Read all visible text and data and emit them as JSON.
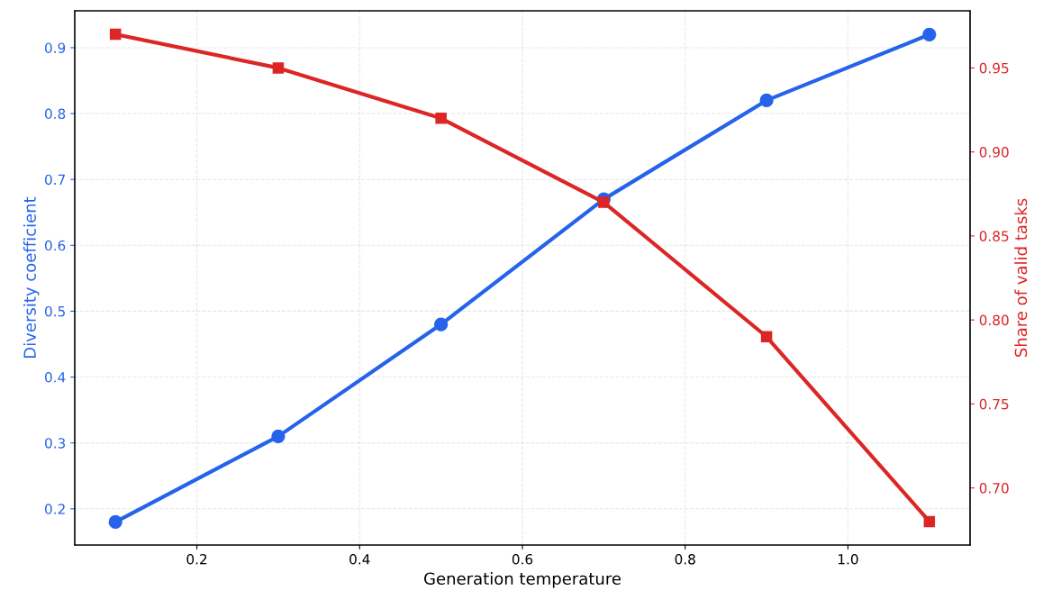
{
  "chart_data": {
    "type": "line",
    "xlabel": "Generation temperature",
    "ylabel": "Diversity coefficient",
    "y2label": "Share of valid tasks",
    "x": [
      0.1,
      0.3,
      0.5,
      0.7,
      0.9,
      1.1
    ],
    "series": [
      {
        "color": "#2563eb",
        "values": [
          0.18,
          0.31,
          0.48,
          0.67,
          0.82,
          0.92
        ],
        "marker": "circle"
      },
      {
        "color": "#dc2626",
        "values": [
          0.97,
          0.95,
          0.92,
          0.87,
          0.79,
          0.68
        ],
        "marker": "square",
        "axis": "y2"
      }
    ],
    "xlim": [
      0.05,
      1.15
    ],
    "xticks": [
      0.2,
      0.4,
      0.6,
      0.8,
      {
        "value": 1,
        "label": "1.0"
      }
    ],
    "ylim": [
      0.145,
      0.956
    ],
    "yticks": [
      0.2,
      0.3,
      0.4,
      0.5,
      0.6,
      0.7,
      0.8,
      0.9
    ],
    "y2lim": [
      0.666,
      0.984
    ],
    "y2ticks": [
      {
        "value": 0.7,
        "label": "0.70"
      },
      0.75,
      {
        "value": 0.8,
        "label": "0.80"
      },
      0.85,
      {
        "value": 0.9,
        "label": "0.90"
      },
      0.95
    ],
    "grid": true,
    "line_style": "solid",
    "legend": false
  }
}
